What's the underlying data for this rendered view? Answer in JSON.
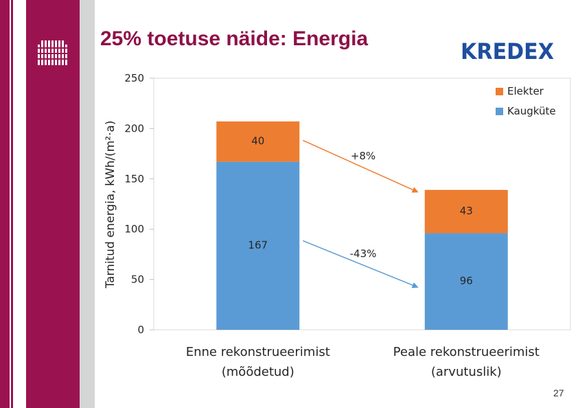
{
  "title": "25% toetuse näide: Energia",
  "logo_text": "KREDEX",
  "page_number": "27",
  "colors": {
    "maroon": "#9a1350",
    "elekter": "#ed7d31",
    "kaugkute": "#5b9bd5",
    "kredex_blue": "#1f4e9e"
  },
  "chart_data": {
    "type": "bar",
    "stacked": true,
    "categories": [
      "Enne rekonstrueerimist (mõõdetud)",
      "Peale rekonstrueerimist (arvutuslik)"
    ],
    "category_lines": [
      [
        "Enne rekonstrueerimist",
        "(mõõdetud)"
      ],
      [
        "Peale rekonstrueerimist",
        "(arvutuslik)"
      ]
    ],
    "series": [
      {
        "name": "Kaugküte",
        "values": [
          167,
          96
        ],
        "labels": [
          "167",
          "96"
        ],
        "color": "#5b9bd5"
      },
      {
        "name": "Elekter",
        "values": [
          40,
          43
        ],
        "labels": [
          "40",
          "43"
        ],
        "color": "#ed7d31"
      }
    ],
    "ylabel": "Tarnitud energia, kWh/(m²·a)",
    "ylim": [
      0,
      250
    ],
    "yticks": [
      "0",
      "50",
      "100",
      "150",
      "200",
      "250"
    ],
    "legend_position": "top-right",
    "annotations": [
      {
        "text": "+8%",
        "series": "Elekter",
        "color": "#ed7d31"
      },
      {
        "text": "-43%",
        "series": "Kaugküte",
        "color": "#5b9bd5"
      }
    ]
  }
}
